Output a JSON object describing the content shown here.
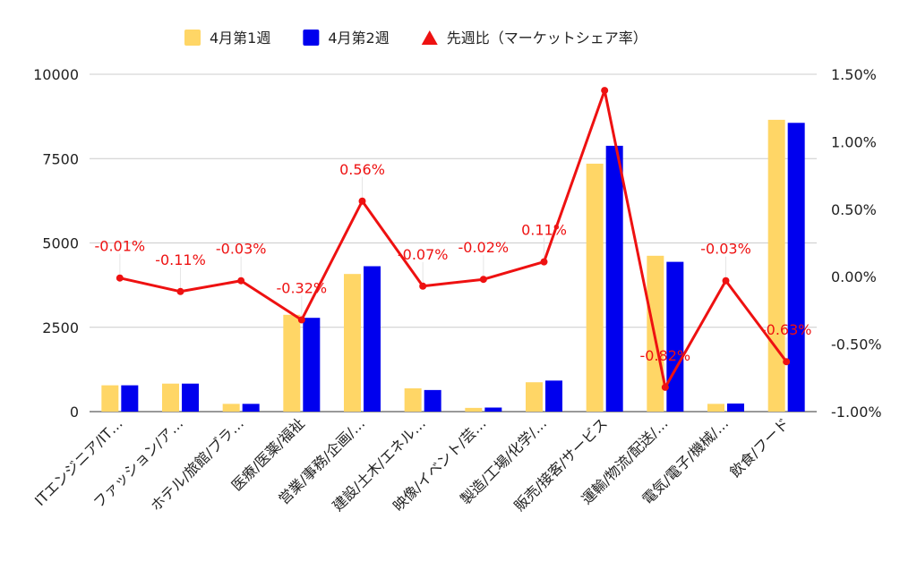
{
  "chart_data": {
    "type": "bar",
    "categories": [
      "ITエンジニア/IT…",
      "ファッション/ア…",
      "ホテル/旅館/ブラ…",
      "医療/医薬/福祉",
      "営業/事務/企画/…",
      "建設/土木/エネル…",
      "映像/イベント/芸…",
      "製造/工場/化学/…",
      "販売/接客/サービス",
      "運輸/物流/配送/…",
      "電気/電子/機械/…",
      "飲食/フード"
    ],
    "series": [
      {
        "name": "4月第1週",
        "type": "bar",
        "axis": "left",
        "color": "#FFD666",
        "values": [
          780,
          830,
          230,
          2870,
          4080,
          690,
          110,
          870,
          7350,
          4620,
          230,
          8650
        ]
      },
      {
        "name": "4月第2週",
        "type": "bar",
        "axis": "left",
        "color": "#0000EE",
        "values": [
          780,
          830,
          230,
          2780,
          4310,
          640,
          120,
          920,
          7880,
          4440,
          240,
          8560
        ]
      },
      {
        "name": "先週比（マーケットシェア率）",
        "type": "line",
        "axis": "right",
        "color": "#EE1111",
        "values": [
          -0.01,
          -0.11,
          -0.03,
          -0.32,
          0.56,
          -0.07,
          -0.02,
          0.11,
          1.38,
          -0.82,
          -0.03,
          -0.63
        ],
        "labels": [
          "-0.01%",
          "-0.11%",
          "-0.03%",
          "-0.32%",
          "0.56%",
          "-0.07%",
          "-0.02%",
          "0.11%",
          "",
          "-0.82%",
          "-0.03%",
          "-0.63%"
        ]
      }
    ],
    "left_axis": {
      "ylim": [
        0,
        10000
      ],
      "ticks": [
        0,
        2500,
        5000,
        7500,
        10000
      ],
      "tick_labels": [
        "0",
        "2500",
        "5000",
        "7500",
        "10000"
      ]
    },
    "right_axis": {
      "ylim": [
        -1.0,
        1.5
      ],
      "ticks": [
        -1.0,
        -0.5,
        0.0,
        0.5,
        1.0,
        1.5
      ],
      "tick_labels": [
        "-1.00%",
        "-0.50%",
        "0.00%",
        "0.50%",
        "1.00%",
        "1.50%"
      ]
    },
    "legend_position": "top",
    "grid": true
  }
}
